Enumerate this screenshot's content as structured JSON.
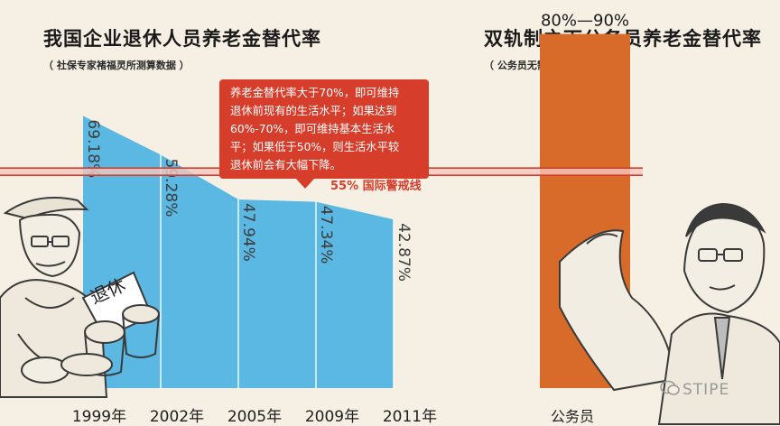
{
  "left_panel": {
    "title": "我国企业退休人员养老金替代率",
    "subtitle": "（ 社保专家褚福灵所测算数据 ）"
  },
  "right_panel": {
    "title": "双轨制之下公务员养老金替代率",
    "subtitle": "（ 公务员无需缴纳养老保险 ）"
  },
  "callout": {
    "lines": [
      "养老金替代率大于70%，即可维持",
      "退休前现有的生活水平；如果达到",
      "60%-70%，即可维持基本生活水",
      "平；如果低于50%，则生活水平较",
      "退休前会有大幅下降。"
    ]
  },
  "illustration": {
    "sign_text": "退休"
  },
  "watermark": "STIPE",
  "colors": {
    "background": "#f6f0e4",
    "area_blue": "#5bb8e2",
    "bar_orange": "#d96b2a",
    "warning_red": "#d73d2b",
    "label_text": "#3c3c3c"
  },
  "chart_data": [
    {
      "type": "area",
      "categories": [
        "1999年",
        "2002年",
        "2005年",
        "2009年",
        "2011年"
      ],
      "values": [
        69.18,
        59.28,
        47.94,
        47.34,
        42.87
      ],
      "data_labels": [
        "69.18%",
        "59.28%",
        "47.94%",
        "47.34%",
        "42.87%"
      ],
      "reference_line": {
        "value": 55,
        "label": "55% 国际警戒线"
      },
      "ylim": [
        0,
        90
      ]
    },
    {
      "type": "bar",
      "categories": [
        "公务员"
      ],
      "value_range": [
        80,
        90
      ],
      "data_labels": [
        "80%—90%"
      ],
      "ylim": [
        0,
        90
      ]
    }
  ]
}
